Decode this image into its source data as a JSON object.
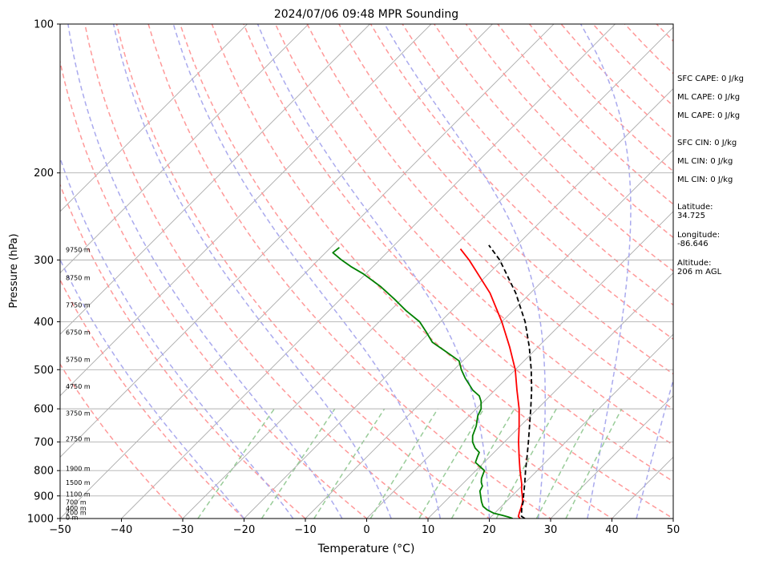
{
  "chart_data": {
    "type": "line",
    "title": "2024/07/06 09:48 MPR Sounding",
    "xlabel": "Temperature (°C)",
    "ylabel": "Pressure (hPa)",
    "xlim": [
      -50,
      50
    ],
    "ylim": [
      1000,
      100
    ],
    "y_scale": "log",
    "grid": true,
    "x_ticks": [
      "−50",
      "−40",
      "−30",
      "−20",
      "−10",
      "0",
      "10",
      "20",
      "30",
      "40",
      "50"
    ],
    "y_ticks": [
      {
        "p": 100,
        "label": "100"
      },
      {
        "p": 200,
        "label": "200"
      },
      {
        "p": 300,
        "label": "300"
      },
      {
        "p": 400,
        "label": "400"
      },
      {
        "p": 500,
        "label": "500"
      },
      {
        "p": 600,
        "label": "600"
      },
      {
        "p": 700,
        "label": "700"
      },
      {
        "p": 800,
        "label": "800"
      },
      {
        "p": 900,
        "label": "900"
      },
      {
        "p": 1000,
        "label": "1000"
      }
    ],
    "height_labels": [
      {
        "p": 286,
        "label": "9750 m"
      },
      {
        "p": 326,
        "label": "8750 m"
      },
      {
        "p": 370,
        "label": "7750 m"
      },
      {
        "p": 420,
        "label": "6750 m"
      },
      {
        "p": 477,
        "label": "5750 m"
      },
      {
        "p": 540,
        "label": "4750 m"
      },
      {
        "p": 612,
        "label": "3750 m"
      },
      {
        "p": 690,
        "label": "2750 m"
      },
      {
        "p": 792,
        "label": "1900 m"
      },
      {
        "p": 845,
        "label": "1500 m"
      },
      {
        "p": 893,
        "label": "1100 m"
      },
      {
        "p": 927,
        "label": "700 m"
      },
      {
        "p": 952,
        "label": "400 m"
      },
      {
        "p": 972,
        "label": "200 m"
      },
      {
        "p": 995,
        "label": "0 m"
      }
    ],
    "series": [
      {
        "color": "#ff0000",
        "points": [
          [
            1000,
            25.0
          ],
          [
            990,
            24.4
          ],
          [
            975,
            24.0
          ],
          [
            950,
            23.4
          ],
          [
            925,
            22.7
          ],
          [
            900,
            21.7
          ],
          [
            875,
            20.6
          ],
          [
            850,
            19.6
          ],
          [
            800,
            17.2
          ],
          [
            750,
            14.8
          ],
          [
            700,
            12.3
          ],
          [
            650,
            9.8
          ],
          [
            600,
            7.0
          ],
          [
            550,
            3.6
          ],
          [
            500,
            0.0
          ],
          [
            450,
            -4.6
          ],
          [
            400,
            -10.0
          ],
          [
            350,
            -16.6
          ],
          [
            300,
            -25.4
          ],
          [
            285,
            -28.6
          ]
        ]
      },
      {
        "color": "#008000",
        "points": [
          [
            1000,
            23.8
          ],
          [
            995,
            23.2
          ],
          [
            985,
            21.6
          ],
          [
            975,
            19.8
          ],
          [
            960,
            18.2
          ],
          [
            945,
            17.0
          ],
          [
            925,
            16.0
          ],
          [
            900,
            14.9
          ],
          [
            880,
            14.0
          ],
          [
            860,
            13.6
          ],
          [
            845,
            12.8
          ],
          [
            830,
            12.2
          ],
          [
            815,
            11.8
          ],
          [
            800,
            11.4
          ],
          [
            785,
            10.0
          ],
          [
            770,
            8.6
          ],
          [
            750,
            8.0
          ],
          [
            735,
            7.6
          ],
          [
            720,
            6.2
          ],
          [
            700,
            4.8
          ],
          [
            680,
            3.8
          ],
          [
            650,
            2.8
          ],
          [
            620,
            1.4
          ],
          [
            600,
            0.8
          ],
          [
            580,
            -0.4
          ],
          [
            565,
            -1.6
          ],
          [
            550,
            -3.6
          ],
          [
            520,
            -6.8
          ],
          [
            500,
            -8.8
          ],
          [
            480,
            -10.6
          ],
          [
            460,
            -14.2
          ],
          [
            440,
            -18.0
          ],
          [
            420,
            -20.6
          ],
          [
            400,
            -23.4
          ],
          [
            380,
            -27.4
          ],
          [
            360,
            -31.2
          ],
          [
            340,
            -35.4
          ],
          [
            320,
            -40.4
          ],
          [
            310,
            -43.4
          ],
          [
            300,
            -46.2
          ],
          [
            290,
            -48.8
          ],
          [
            283,
            -48.6
          ]
        ]
      },
      {
        "color": "#000000",
        "dashed": true,
        "points": [
          [
            1000,
            25.8
          ],
          [
            990,
            24.9
          ],
          [
            970,
            24.2
          ],
          [
            950,
            23.5
          ],
          [
            925,
            22.8
          ],
          [
            900,
            21.9
          ],
          [
            850,
            20.1
          ],
          [
            800,
            18.1
          ],
          [
            750,
            16.1
          ],
          [
            700,
            13.9
          ],
          [
            650,
            11.5
          ],
          [
            600,
            8.9
          ],
          [
            550,
            6.0
          ],
          [
            500,
            2.6
          ],
          [
            450,
            -1.4
          ],
          [
            400,
            -6.2
          ],
          [
            350,
            -12.4
          ],
          [
            300,
            -20.4
          ],
          [
            280,
            -24.6
          ]
        ]
      }
    ],
    "background_lines": {
      "isotherms": [
        -100,
        -90,
        -80,
        -70,
        -60,
        -50,
        -40,
        -30,
        -20,
        -10,
        0,
        10,
        20,
        30,
        40,
        50
      ],
      "dry_adiabats_theta_c": [
        -30,
        -20,
        -10,
        0,
        10,
        20,
        30,
        40,
        50,
        60,
        70,
        80,
        90,
        100,
        110,
        120,
        130,
        140,
        150,
        160,
        170,
        180,
        190,
        200
      ],
      "moist_adiabats_t1000_c": [
        -20,
        -12,
        -4,
        4,
        12,
        20,
        28,
        36,
        44,
        52
      ],
      "mixing_ratios_gkg": [
        0.4,
        1,
        2,
        4,
        7,
        10,
        16,
        24,
        32
      ],
      "colors": {
        "isotherm": "#aaaaaa",
        "dry": "#ff9999",
        "moist": "#aaaaee",
        "mixing": "#99cc99"
      }
    }
  },
  "info": {
    "sfc_cape": "SFC CAPE: 0 J/kg",
    "ml_cape_1": "ML CAPE: 0 J/kg",
    "ml_cape_2": "ML CAPE: 0 J/kg",
    "sfc_cin": "SFC CIN: 0 J/kg",
    "ml_cin_1": "ML CIN: 0 J/kg",
    "ml_cin_2": "ML CIN: 0 J/kg",
    "latitude_label": "Latitude:",
    "latitude": "34.725",
    "longitude_label": "Longitude:",
    "longitude": "-86.646",
    "altitude_label": "Altitude:",
    "altitude": "206 m AGL"
  }
}
